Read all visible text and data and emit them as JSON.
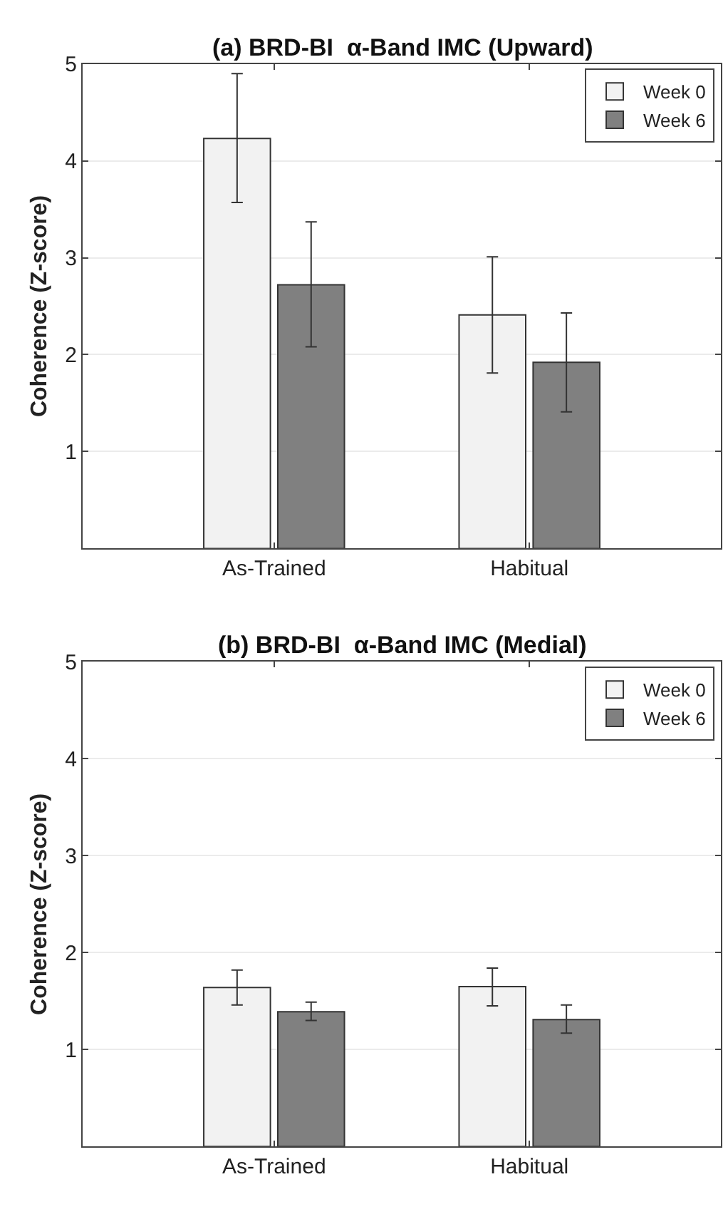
{
  "chart_data": [
    {
      "type": "bar",
      "title": "(a) BRD-BI  α-Band IMC (Upward)",
      "ylabel": "Coherence (Z-score)",
      "categories": [
        "As-Trained",
        "Habitual"
      ],
      "series": [
        {
          "name": "Week 0",
          "color": "#f2f2f2",
          "values": [
            4.23,
            2.41
          ],
          "errors": [
            [
              3.57,
              4.9
            ],
            [
              1.81,
              3.01
            ]
          ]
        },
        {
          "name": "Week 6",
          "color": "#808080",
          "values": [
            2.72,
            1.92
          ],
          "errors": [
            [
              2.08,
              3.37
            ],
            [
              1.41,
              2.43
            ]
          ]
        }
      ],
      "ylim": [
        0,
        5
      ],
      "yticks": [
        1,
        2,
        3,
        4,
        5
      ],
      "grid": "y",
      "legend": "top right"
    },
    {
      "type": "bar",
      "title": "(b) BRD-BI  α-Band IMC (Medial)",
      "ylabel": "Coherence (Z-score)",
      "categories": [
        "As-Trained",
        "Habitual"
      ],
      "series": [
        {
          "name": "Week 0",
          "color": "#f2f2f2",
          "values": [
            1.64,
            1.65
          ],
          "errors": [
            [
              1.46,
              1.82
            ],
            [
              1.45,
              1.84
            ]
          ]
        },
        {
          "name": "Week 6",
          "color": "#808080",
          "values": [
            1.39,
            1.31
          ],
          "errors": [
            [
              1.3,
              1.49
            ],
            [
              1.17,
              1.46
            ]
          ]
        }
      ],
      "ylim": [
        0,
        5
      ],
      "yticks": [
        1,
        2,
        3,
        4,
        5
      ],
      "grid": "y",
      "legend": "top right"
    }
  ]
}
